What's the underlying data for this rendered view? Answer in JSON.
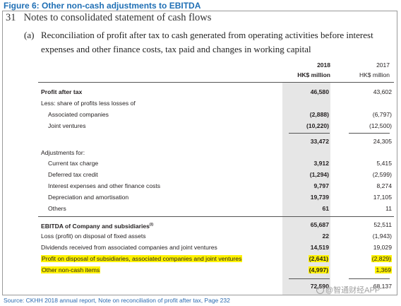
{
  "figure_title": "Figure 6: Other non-cash adjustments to EBITDA",
  "note": {
    "number": "31",
    "title": "Notes to consolidated statement of cash flows",
    "section_letter": "(a)",
    "section_title": "Reconciliation of profit after tax to cash generated from operating activities before interest expenses and other finance costs, tax paid and changes in working capital"
  },
  "columns": {
    "year_2018": "2018",
    "unit_2018": "HK$ million",
    "year_2017": "2017",
    "unit_2017": "HK$ million"
  },
  "rows": [
    {
      "label": "Profit after tax",
      "v2018": "46,580",
      "v2017": "43,602"
    },
    {
      "label": "Less: share of profits less losses of",
      "v2018": "",
      "v2017": ""
    },
    {
      "label": "Associated companies",
      "v2018": "(2,888)",
      "v2017": "(6,797)"
    },
    {
      "label": "Joint ventures",
      "v2018": "(10,220)",
      "v2017": "(12,500)"
    },
    {
      "label": "",
      "v2018": "33,472",
      "v2017": "24,305"
    },
    {
      "label": "Adjustments for:",
      "v2018": "",
      "v2017": ""
    },
    {
      "label": "Current tax charge",
      "v2018": "3,912",
      "v2017": "5,415"
    },
    {
      "label": "Deferred tax credit",
      "v2018": "(1,294)",
      "v2017": "(2,599)"
    },
    {
      "label": "Interest expenses and other finance costs",
      "v2018": "9,797",
      "v2017": "8,274"
    },
    {
      "label": "Depreciation and amortisation",
      "v2018": "19,739",
      "v2017": "17,105"
    },
    {
      "label": "Others",
      "v2018": "61",
      "v2017": "11"
    },
    {
      "label": "EBITDA of Company and subsidiaries",
      "footnote_mark": "(i)",
      "v2018": "65,687",
      "v2017": "52,511"
    },
    {
      "label": "Loss (profit) on disposal of fixed assets",
      "v2018": "22",
      "v2017": "(1,943)"
    },
    {
      "label": "Dividends received from associated companies and joint ventures",
      "v2018": "14,519",
      "v2017": "19,029"
    },
    {
      "label": "Profit on disposal of subsidiaries, associated companies and joint ventures",
      "v2018": "(2,641)",
      "v2017": "(2,829)"
    },
    {
      "label": "Other non-cash items",
      "v2018": "(4,997)",
      "v2017": "1,369"
    },
    {
      "label": "",
      "v2018": "72,590",
      "v2017": "68,137"
    }
  ],
  "highlight_color": "#fff200",
  "source": "Source: CKHH 2018 annual report, Note on reconciliation of profit after tax, Page 232",
  "watermark": "@智通财经APP"
}
